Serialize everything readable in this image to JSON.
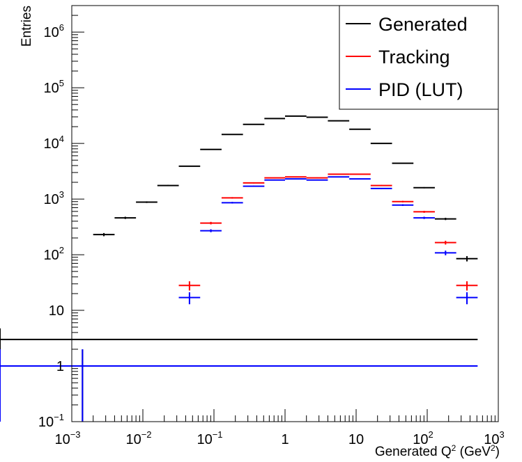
{
  "chart_data": {
    "type": "scatter",
    "xlabel": "Generated Q",
    "xlabel_sup": "2",
    "xlabel_unit_prefix": " (GeV",
    "xlabel_unit_sup": "2",
    "xlabel_unit_suffix": ")",
    "ylabel": "Entries",
    "x_scale": "log",
    "y_scale": "log",
    "xlim": [
      0.001,
      1000
    ],
    "ylim": [
      0.1,
      3000000
    ],
    "grid": false,
    "legend_position": "top-right",
    "x_ticks": [
      {
        "base": "10",
        "exp": "−3",
        "value": 0.001
      },
      {
        "base": "10",
        "exp": "−2",
        "value": 0.01
      },
      {
        "base": "10",
        "exp": "−1",
        "value": 0.1
      },
      {
        "base": "1",
        "exp": "",
        "value": 1
      },
      {
        "base": "10",
        "exp": "",
        "value": 10
      },
      {
        "base": "10",
        "exp": "2",
        "value": 100
      },
      {
        "base": "10",
        "exp": "3",
        "value": 1000
      }
    ],
    "y_ticks": [
      {
        "base": "10",
        "exp": "−1",
        "value": 0.1
      },
      {
        "base": "1",
        "exp": "",
        "value": 1
      },
      {
        "base": "10",
        "exp": "",
        "value": 10
      },
      {
        "base": "10",
        "exp": "2",
        "value": 100
      },
      {
        "base": "10",
        "exp": "3",
        "value": 1000
      },
      {
        "base": "10",
        "exp": "4",
        "value": 10000
      },
      {
        "base": "10",
        "exp": "5",
        "value": 100000
      },
      {
        "base": "10",
        "exp": "6",
        "value": 1000000
      }
    ],
    "bin_edges": [
      0.001,
      0.002,
      0.004,
      0.008,
      0.016,
      0.032,
      0.064,
      0.128,
      0.256,
      0.512,
      1.0,
      2.0,
      4.0,
      8.0,
      16.0,
      32.0,
      64.0,
      128.0,
      256.0,
      512.0
    ],
    "series": [
      {
        "name": "Generated",
        "color": "#000000",
        "values": [
          1,
          230,
          460,
          880,
          1750,
          3900,
          7800,
          14500,
          22000,
          28000,
          31000,
          29500,
          25500,
          18000,
          10000,
          4400,
          1600,
          440,
          85,
          3
        ]
      },
      {
        "name": "Tracking",
        "color": "#ff0000",
        "values": [
          0,
          0,
          0,
          0,
          0,
          28,
          370,
          1050,
          1950,
          2400,
          2500,
          2400,
          2800,
          2800,
          1750,
          900,
          590,
          165,
          28,
          0
        ]
      },
      {
        "name": "PID (LUT)",
        "color": "#0000ff",
        "values": [
          1,
          0,
          0,
          0,
          0,
          17,
          270,
          860,
          1700,
          2200,
          2300,
          2200,
          2500,
          2300,
          1550,
          780,
          460,
          108,
          17,
          1
        ]
      }
    ]
  }
}
